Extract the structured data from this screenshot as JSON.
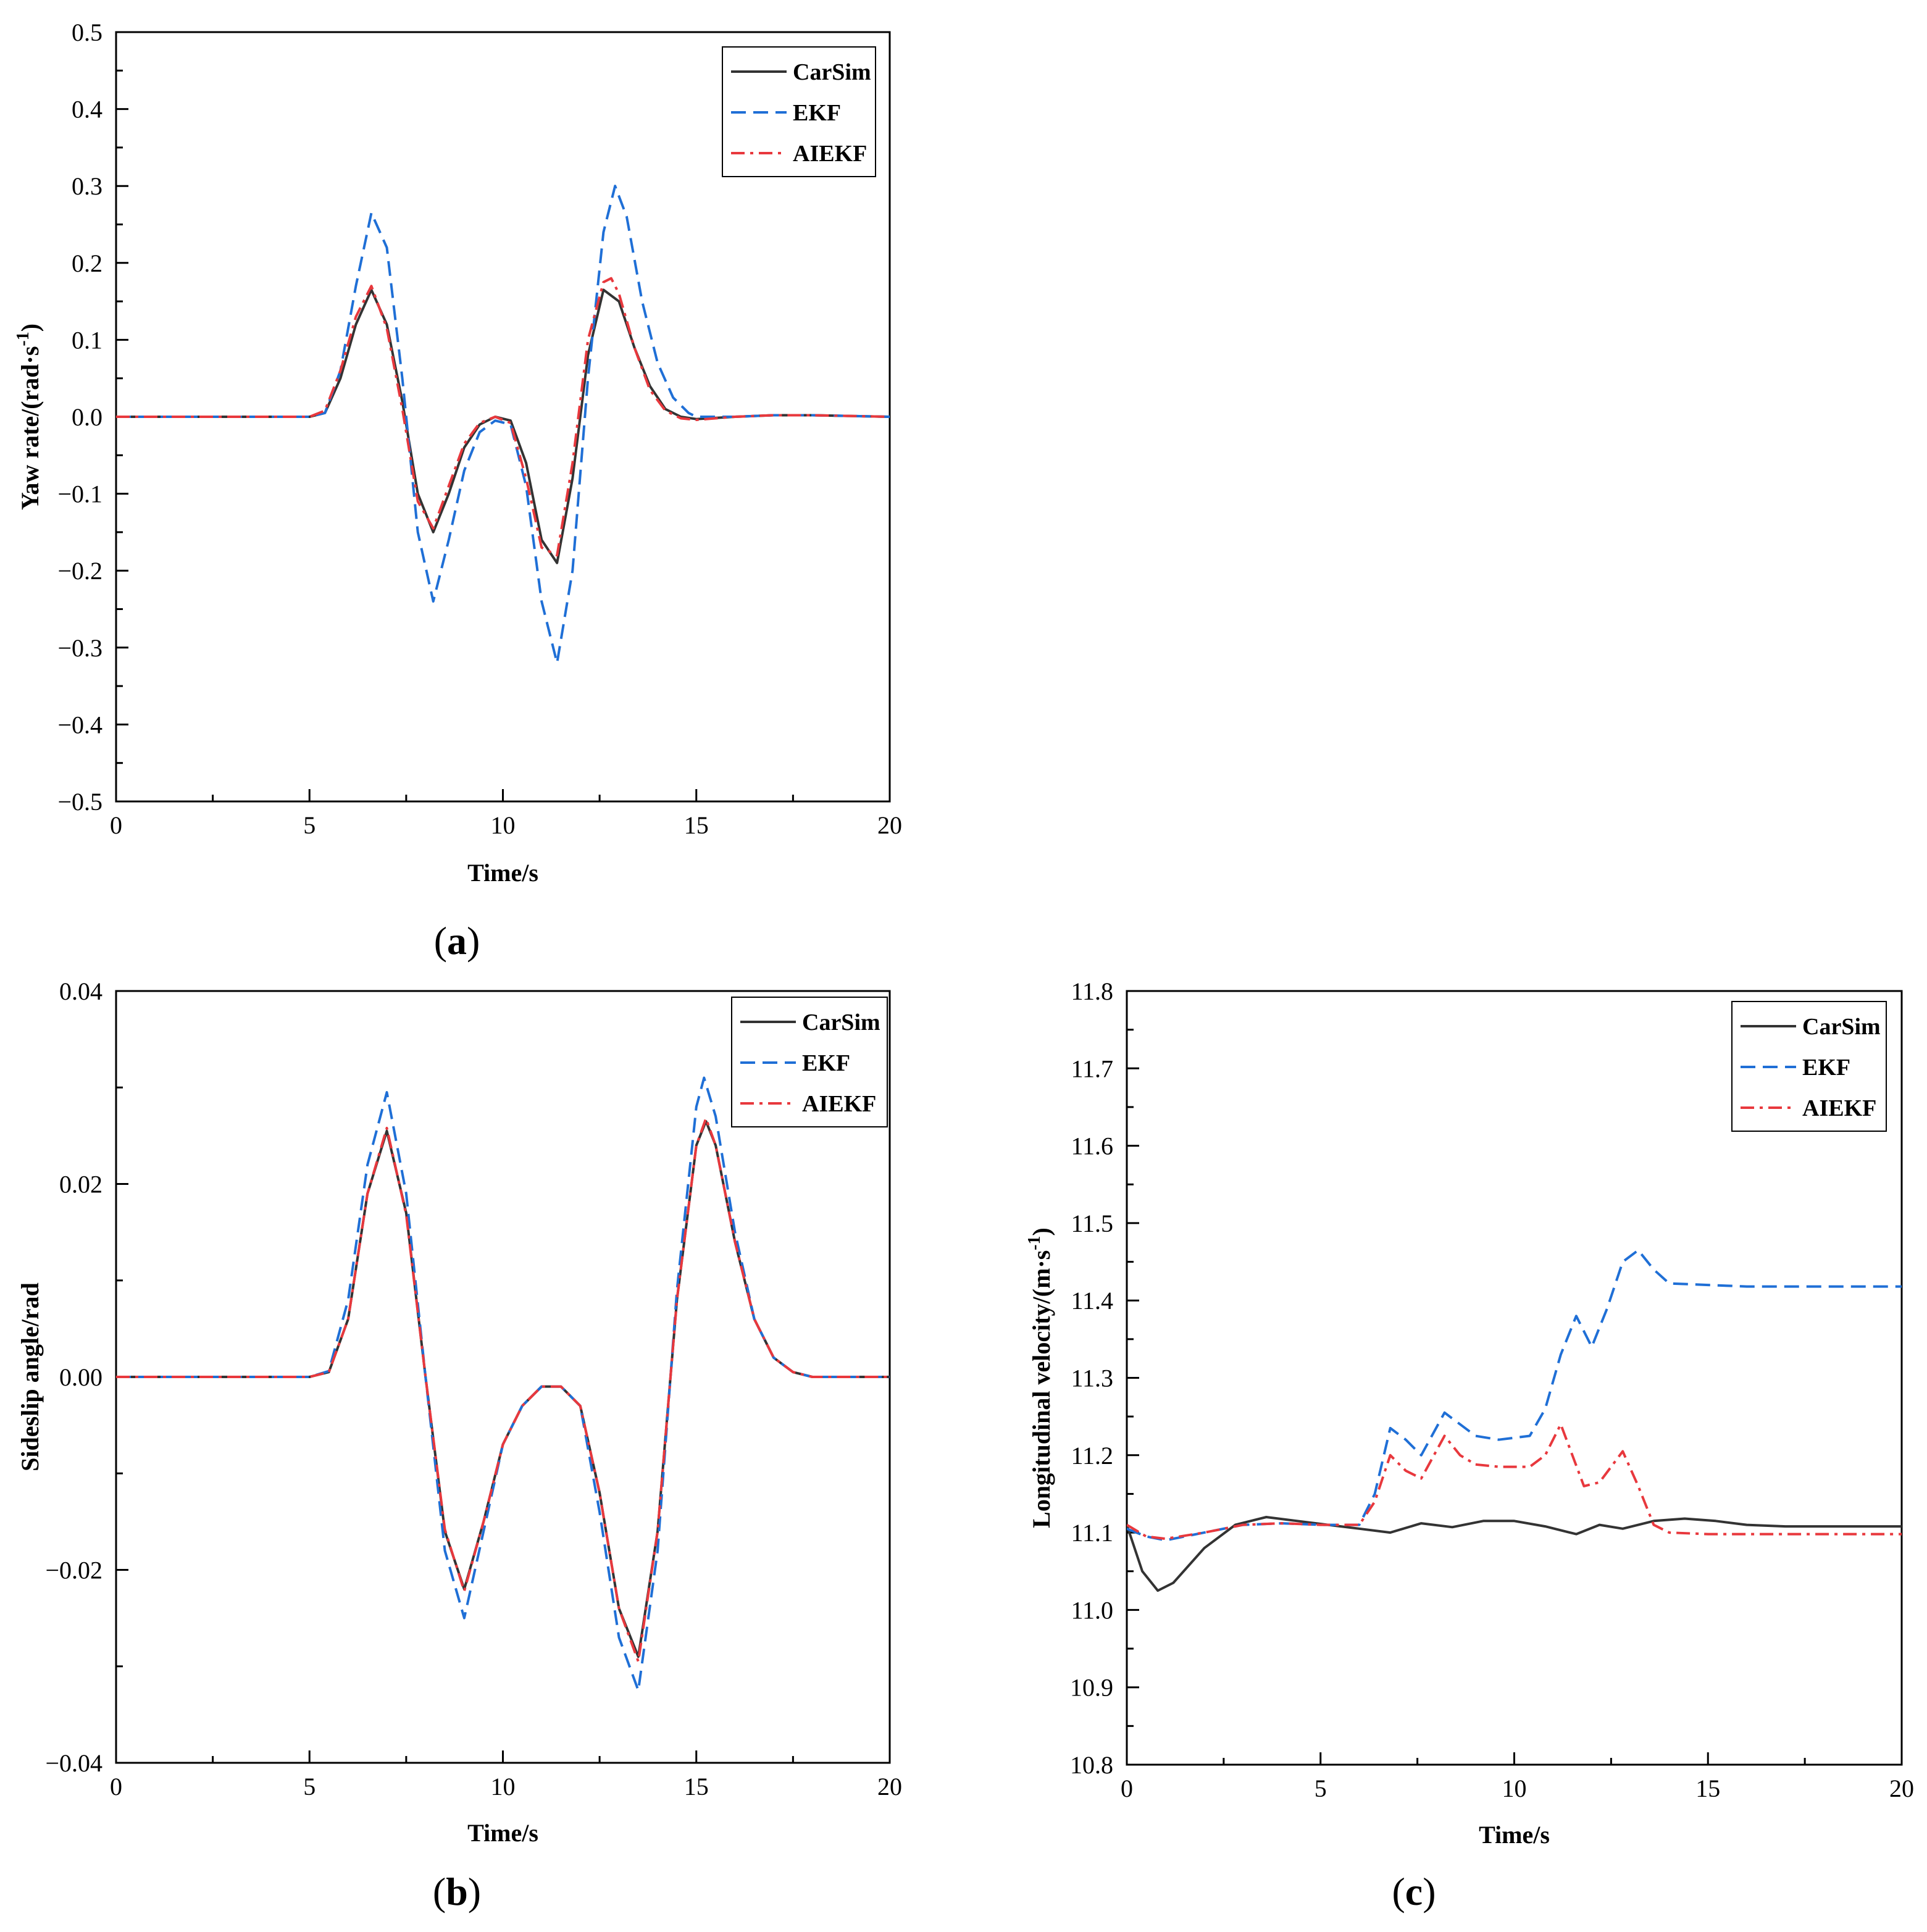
{
  "chart_data": [
    {
      "type": "line",
      "panel_label": "a",
      "xlabel": "Time/s",
      "ylabel": "Yaw rate/(rad·s",
      "ylabel_sup": "-1",
      "ylabel_close": ")",
      "xlim": [
        0,
        20
      ],
      "ylim": [
        -0.5,
        0.5
      ],
      "xticks": [
        0,
        5,
        10,
        15,
        20
      ],
      "yticks": [
        -0.5,
        -0.4,
        -0.3,
        -0.2,
        -0.1,
        0.0,
        0.1,
        0.2,
        0.3,
        0.4,
        0.5
      ],
      "ytick_labels": [
        "−0.5",
        "−0.4",
        "−0.3",
        "−0.2",
        "−0.1",
        "0.0",
        "0.1",
        "0.2",
        "0.3",
        "0.4",
        "0.5"
      ],
      "xtick_labels": [
        "0",
        "5",
        "10",
        "15",
        "20"
      ],
      "legend_position": "top-right",
      "series": [
        {
          "name": "CarSim",
          "color": "#333333",
          "dash": "solid",
          "x": [
            0,
            5.0,
            5.4,
            5.8,
            6.2,
            6.6,
            7.0,
            7.4,
            7.8,
            8.2,
            8.6,
            9.0,
            9.4,
            9.8,
            10.2,
            10.6,
            11.0,
            11.4,
            11.8,
            12.2,
            12.6,
            13.0,
            13.4,
            13.8,
            14.2,
            14.6,
            15.0,
            16.0,
            17.0,
            18.0,
            20.0
          ],
          "y": [
            0,
            0,
            0.005,
            0.05,
            0.12,
            0.165,
            0.12,
            0.02,
            -0.1,
            -0.15,
            -0.1,
            -0.04,
            -0.01,
            0.0,
            -0.005,
            -0.06,
            -0.16,
            -0.19,
            -0.08,
            0.08,
            0.165,
            0.15,
            0.09,
            0.04,
            0.01,
            0.0,
            -0.003,
            0.0,
            0.002,
            0.002,
            0.0
          ]
        },
        {
          "name": "EKF",
          "color": "#1f6fd6",
          "dash": "dashed",
          "x": [
            0,
            5.0,
            5.4,
            5.8,
            6.2,
            6.6,
            7.0,
            7.4,
            7.8,
            8.2,
            8.6,
            9.0,
            9.4,
            9.8,
            10.2,
            10.6,
            11.0,
            11.4,
            11.8,
            12.2,
            12.6,
            12.9,
            13.2,
            13.6,
            14.0,
            14.4,
            14.8,
            15.0,
            16.0,
            17.0,
            18.0,
            20.0
          ],
          "y": [
            0,
            0,
            0.005,
            0.06,
            0.17,
            0.265,
            0.22,
            0.05,
            -0.15,
            -0.24,
            -0.16,
            -0.07,
            -0.02,
            -0.005,
            -0.01,
            -0.09,
            -0.24,
            -0.32,
            -0.2,
            0.05,
            0.24,
            0.3,
            0.26,
            0.15,
            0.07,
            0.025,
            0.005,
            0.0,
            0.0,
            0.002,
            0.002,
            0.0
          ]
        },
        {
          "name": "AIEKF",
          "color": "#e8383d",
          "dash": "dashdot",
          "x": [
            0,
            5.0,
            5.4,
            5.8,
            6.2,
            6.6,
            7.0,
            7.4,
            7.8,
            8.2,
            8.6,
            9.0,
            9.4,
            9.8,
            10.2,
            10.6,
            11.0,
            11.4,
            11.8,
            12.2,
            12.6,
            12.8,
            13.0,
            13.4,
            13.8,
            14.2,
            14.6,
            15.0,
            16.0,
            17.0,
            18.0,
            20.0
          ],
          "y": [
            0,
            0,
            0.008,
            0.06,
            0.13,
            0.17,
            0.115,
            0.01,
            -0.11,
            -0.145,
            -0.09,
            -0.035,
            -0.008,
            0.0,
            -0.008,
            -0.08,
            -0.17,
            -0.18,
            -0.06,
            0.1,
            0.175,
            0.18,
            0.16,
            0.09,
            0.035,
            0.008,
            -0.002,
            -0.004,
            0.0,
            0.002,
            0.002,
            0.0
          ]
        }
      ]
    },
    {
      "type": "line",
      "panel_label": "b",
      "xlabel": "Time/s",
      "ylabel": "Sideslip angle/rad",
      "xlim": [
        0,
        20
      ],
      "ylim": [
        -0.04,
        0.04
      ],
      "xticks": [
        0,
        5,
        10,
        15,
        20
      ],
      "yticks": [
        -0.04,
        -0.02,
        0.0,
        0.02,
        0.04
      ],
      "ytick_labels": [
        "−0.04",
        "−0.02",
        "0.00",
        "0.02",
        "0.04"
      ],
      "xtick_labels": [
        "0",
        "5",
        "10",
        "15",
        "20"
      ],
      "legend_position": "top-right",
      "series": [
        {
          "name": "CarSim",
          "color": "#333333",
          "dash": "solid",
          "x": [
            0,
            5.0,
            5.5,
            6.0,
            6.5,
            7.0,
            7.5,
            8.0,
            8.5,
            9.0,
            9.5,
            10.0,
            10.5,
            11.0,
            11.5,
            12.0,
            12.5,
            13.0,
            13.5,
            14.0,
            14.5,
            15.0,
            15.25,
            15.5,
            16.0,
            16.5,
            17.0,
            17.5,
            18.0,
            20.0
          ],
          "y": [
            0,
            0,
            0.0005,
            0.006,
            0.019,
            0.0255,
            0.017,
            0.0,
            -0.016,
            -0.022,
            -0.015,
            -0.007,
            -0.003,
            -0.001,
            -0.001,
            -0.003,
            -0.012,
            -0.024,
            -0.029,
            -0.016,
            0.008,
            0.024,
            0.0265,
            0.024,
            0.014,
            0.006,
            0.002,
            0.0005,
            0.0,
            0.0
          ]
        },
        {
          "name": "EKF",
          "color": "#1f6fd6",
          "dash": "dashed",
          "x": [
            0,
            5.0,
            5.5,
            6.0,
            6.5,
            7.0,
            7.5,
            8.0,
            8.5,
            9.0,
            9.5,
            10.0,
            10.5,
            11.0,
            11.5,
            12.0,
            12.5,
            13.0,
            13.5,
            14.0,
            14.5,
            15.0,
            15.2,
            15.5,
            16.0,
            16.5,
            17.0,
            17.5,
            18.0,
            20.0
          ],
          "y": [
            0,
            0,
            0.0006,
            0.008,
            0.022,
            0.0295,
            0.019,
            0.0,
            -0.018,
            -0.025,
            -0.016,
            -0.007,
            -0.003,
            -0.001,
            -0.001,
            -0.003,
            -0.014,
            -0.027,
            -0.0325,
            -0.018,
            0.009,
            0.028,
            0.031,
            0.027,
            0.015,
            0.006,
            0.002,
            0.0005,
            0.0,
            0.0
          ]
        },
        {
          "name": "AIEKF",
          "color": "#e8383d",
          "dash": "dashdot",
          "x": [
            0,
            5.0,
            5.5,
            6.0,
            6.5,
            7.0,
            7.5,
            8.0,
            8.5,
            9.0,
            9.5,
            10.0,
            10.5,
            11.0,
            11.5,
            12.0,
            12.5,
            13.0,
            13.5,
            14.0,
            14.5,
            15.0,
            15.25,
            15.5,
            16.0,
            16.5,
            17.0,
            17.5,
            18.0,
            20.0
          ],
          "y": [
            0,
            0,
            0.0005,
            0.006,
            0.019,
            0.0258,
            0.0168,
            0.0,
            -0.0158,
            -0.0222,
            -0.015,
            -0.007,
            -0.003,
            -0.001,
            -0.001,
            -0.003,
            -0.012,
            -0.024,
            -0.0295,
            -0.016,
            0.008,
            0.024,
            0.0268,
            0.024,
            0.014,
            0.006,
            0.002,
            0.0005,
            0.0,
            0.0
          ]
        }
      ]
    },
    {
      "type": "line",
      "panel_label": "c",
      "xlabel": "Time/s",
      "ylabel": "Longitudinal velocity/(m·s",
      "ylabel_sup": "-1",
      "ylabel_close": ")",
      "xlim": [
        0,
        20
      ],
      "ylim": [
        10.8,
        11.8
      ],
      "xticks": [
        0,
        5,
        10,
        15,
        20
      ],
      "yticks": [
        10.8,
        10.9,
        11.0,
        11.1,
        11.2,
        11.3,
        11.4,
        11.5,
        11.6,
        11.7,
        11.8
      ],
      "ytick_labels": [
        "10.8",
        "10.9",
        "11.0",
        "11.1",
        "11.2",
        "11.3",
        "11.4",
        "11.5",
        "11.6",
        "11.7",
        "11.8"
      ],
      "xtick_labels": [
        "0",
        "5",
        "10",
        "15",
        "20"
      ],
      "legend_position": "top-right",
      "series": [
        {
          "name": "CarSim",
          "color": "#333333",
          "dash": "solid",
          "x": [
            0,
            0.4,
            0.8,
            1.2,
            2.0,
            2.8,
            3.6,
            4.4,
            5.2,
            6.0,
            6.8,
            7.6,
            8.4,
            9.2,
            10.0,
            10.8,
            11.6,
            12.2,
            12.8,
            13.6,
            14.4,
            15.2,
            16.0,
            17.0,
            18.0,
            20.0
          ],
          "y": [
            11.11,
            11.05,
            11.025,
            11.035,
            11.08,
            11.11,
            11.12,
            11.115,
            11.11,
            11.105,
            11.1,
            11.112,
            11.107,
            11.115,
            11.115,
            11.108,
            11.098,
            11.11,
            11.105,
            11.115,
            11.118,
            11.115,
            11.11,
            11.108,
            11.108,
            11.108
          ]
        },
        {
          "name": "EKF",
          "color": "#1f6fd6",
          "dash": "dashed",
          "x": [
            0,
            0.5,
            1.0,
            2.0,
            3.0,
            4.0,
            5.0,
            6.0,
            6.4,
            6.8,
            7.2,
            7.6,
            8.2,
            8.6,
            9.0,
            9.6,
            10.4,
            10.8,
            11.2,
            11.6,
            12.0,
            12.4,
            12.8,
            13.2,
            13.6,
            14.0,
            15.0,
            16.0,
            17.0,
            18.0,
            20.0
          ],
          "y": [
            11.105,
            11.095,
            11.09,
            11.1,
            11.11,
            11.112,
            11.11,
            11.11,
            11.15,
            11.235,
            11.22,
            11.2,
            11.255,
            11.24,
            11.225,
            11.22,
            11.225,
            11.26,
            11.33,
            11.38,
            11.34,
            11.39,
            11.45,
            11.465,
            11.44,
            11.422,
            11.42,
            11.418,
            11.418,
            11.418,
            11.418
          ]
        },
        {
          "name": "AIEKF",
          "color": "#e8383d",
          "dash": "dashdot",
          "x": [
            0,
            0.5,
            1.0,
            2.0,
            3.0,
            4.0,
            5.0,
            6.0,
            6.4,
            6.8,
            7.2,
            7.6,
            8.2,
            8.6,
            9.0,
            9.6,
            10.4,
            10.8,
            11.2,
            11.5,
            11.8,
            12.2,
            12.8,
            13.2,
            13.6,
            14.0,
            15.0,
            16.0,
            17.0,
            18.0,
            20.0
          ],
          "y": [
            11.11,
            11.095,
            11.092,
            11.1,
            11.11,
            11.112,
            11.11,
            11.11,
            11.14,
            11.2,
            11.18,
            11.17,
            11.225,
            11.2,
            11.188,
            11.185,
            11.185,
            11.2,
            11.24,
            11.2,
            11.16,
            11.165,
            11.205,
            11.16,
            11.11,
            11.1,
            11.098,
            11.098,
            11.098,
            11.098,
            11.098
          ]
        }
      ]
    }
  ]
}
